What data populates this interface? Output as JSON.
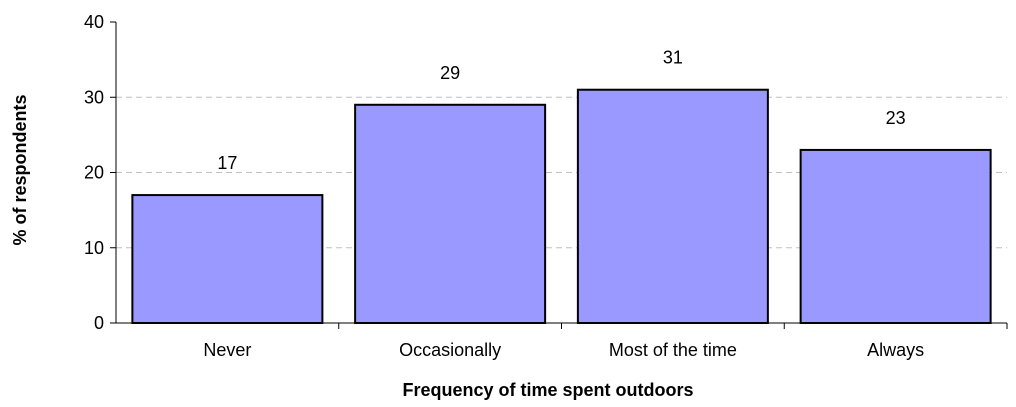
{
  "chart_data": {
    "type": "bar",
    "categories": [
      "Never",
      "Occasionally",
      "Most of the time",
      "Always"
    ],
    "values": [
      17,
      29,
      31,
      23
    ],
    "data_labels": [
      "17",
      "29",
      "31",
      "23"
    ],
    "title": "",
    "xlabel": "Frequency of time spent outdoors",
    "ylabel": "% of respondents",
    "ylim": [
      0,
      40
    ],
    "yticks": [
      0,
      10,
      20,
      30,
      40
    ],
    "ytick_labels": [
      "0",
      "10",
      "20",
      "30",
      "40"
    ],
    "grid": "horizontal dashed",
    "legend": "none",
    "colors": {
      "bar_fill": "#9999ff",
      "bar_stroke": "#000000",
      "grid": "#c0c0c0",
      "axis": "#000000"
    }
  }
}
